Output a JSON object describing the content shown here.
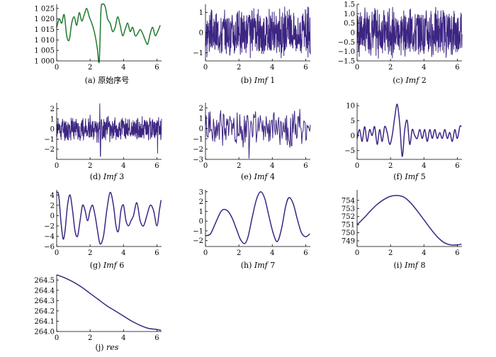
{
  "chart_data": [
    {
      "id": "a",
      "type": "line",
      "color": "#1f7a2e",
      "caption_prefix": "(a) ",
      "caption_name": "原始序号",
      "caption_name_italic": false,
      "caption_suffix": "",
      "xlim": [
        0,
        6.28
      ],
      "ylim": [
        1000,
        1027
      ],
      "xticks": [
        0,
        2,
        4,
        6
      ],
      "xtick_labels": [
        "0",
        "2",
        "4",
        "6"
      ],
      "yticks": [
        1000,
        1005,
        1010,
        1015,
        1020,
        1025
      ],
      "ytick_labels": [
        "1 000",
        "1 005",
        "1 010",
        "1 015",
        "1 020",
        "1 025"
      ],
      "x": [
        0.0,
        0.15,
        0.3,
        0.45,
        0.6,
        0.75,
        0.9,
        1.05,
        1.2,
        1.35,
        1.5,
        1.65,
        1.8,
        1.95,
        2.1,
        2.25,
        2.35,
        2.45,
        2.55,
        2.65,
        2.75,
        2.9,
        3.05,
        3.2,
        3.35,
        3.5,
        3.65,
        3.8,
        3.95,
        4.1,
        4.25,
        4.4,
        4.55,
        4.7,
        4.85,
        5.0,
        5.15,
        5.3,
        5.45,
        5.6,
        5.75,
        5.9,
        6.05,
        6.2
      ],
      "y": [
        1016,
        1020,
        1018,
        1022,
        1012,
        1010,
        1018,
        1021,
        1017,
        1023,
        1019,
        1022,
        1025,
        1021,
        1018,
        1014,
        1010,
        1005,
        1000,
        1024,
        1027,
        1026,
        1020,
        1018,
        1014,
        1016,
        1021,
        1017,
        1012,
        1015,
        1018,
        1014,
        1016,
        1012,
        1013,
        1015,
        1013,
        1010,
        1008,
        1013,
        1016,
        1012,
        1014,
        1017
      ]
    },
    {
      "id": "b",
      "type": "line",
      "noise": true,
      "color": "#3d2582",
      "caption_prefix": "(b) ",
      "caption_name": "Imf",
      "caption_name_italic": true,
      "caption_suffix": " 1",
      "xlim": [
        0,
        6.28
      ],
      "ylim": [
        -1.4,
        1.4
      ],
      "xticks": [
        0,
        2,
        4,
        6
      ],
      "xtick_labels": [
        "0",
        "2",
        "4",
        "6"
      ],
      "yticks": [
        -1,
        0,
        1
      ],
      "ytick_labels": [
        "−1",
        "0",
        "1"
      ],
      "amplitude": 1.3,
      "samples": 500,
      "seed": 3
    },
    {
      "id": "c",
      "type": "line",
      "noise": true,
      "color": "#3d2582",
      "caption_prefix": "(c) ",
      "caption_name": "Imf",
      "caption_name_italic": true,
      "caption_suffix": " 2",
      "xlim": [
        0,
        6.28
      ],
      "ylim": [
        -1.5,
        1.5
      ],
      "xticks": [
        0,
        2,
        4,
        6
      ],
      "xtick_labels": [
        "0",
        "2",
        "4",
        "6"
      ],
      "yticks": [
        -1.5,
        -1,
        -0.5,
        0,
        0.5,
        1,
        1.5
      ],
      "ytick_labels": [
        "−1.5",
        "−1.0",
        "−0.5",
        "0",
        "0.5",
        "1.0",
        "1.5"
      ],
      "amplitude": 1.45,
      "samples": 500,
      "seed": 7
    },
    {
      "id": "d",
      "type": "line",
      "noise": true,
      "color": "#3d2582",
      "caption_prefix": "(d) ",
      "caption_name": "Imf",
      "caption_name_italic": true,
      "caption_suffix": " 3",
      "xlim": [
        0,
        6.28
      ],
      "ylim": [
        -3,
        2.6
      ],
      "xticks": [
        0,
        2,
        4,
        6
      ],
      "xtick_labels": [
        "0",
        "2",
        "4",
        "6"
      ],
      "yticks": [
        -2,
        -1,
        0,
        1,
        2
      ],
      "ytick_labels": [
        "−2",
        "−1",
        "0",
        "1",
        "2"
      ],
      "amplitude": 1.4,
      "samples": 400,
      "seed": 11,
      "spikes": [
        {
          "x": 2.62,
          "y": -2.7
        },
        {
          "x": 2.58,
          "y": 2.5
        },
        {
          "x": 6.05,
          "y": -2.4
        }
      ]
    },
    {
      "id": "e",
      "type": "line",
      "noise": true,
      "color": "#3d2582",
      "caption_prefix": "(e) ",
      "caption_name": "Imf",
      "caption_name_italic": true,
      "caption_suffix": " 4",
      "xlim": [
        0,
        6.28
      ],
      "ylim": [
        -3,
        2.5
      ],
      "xticks": [
        0,
        2,
        4,
        6
      ],
      "xtick_labels": [
        "0",
        "2",
        "4",
        "6"
      ],
      "yticks": [
        -3,
        -2,
        -1,
        0,
        1,
        2
      ],
      "ytick_labels": [
        "−3",
        "−2",
        "−1",
        "0",
        "1",
        "2"
      ],
      "amplitude": 2.1,
      "samples": 160,
      "seed": 19,
      "spikes": [
        {
          "x": 2.6,
          "y": -2.9
        }
      ]
    },
    {
      "id": "f",
      "type": "line",
      "color": "#3d2582",
      "caption_prefix": "(f) ",
      "caption_name": "Imf",
      "caption_name_italic": true,
      "caption_suffix": " 5",
      "xlim": [
        0,
        6.28
      ],
      "ylim": [
        -8,
        11
      ],
      "xticks": [
        0,
        2,
        4,
        6
      ],
      "xtick_labels": [
        "0",
        "2",
        "4",
        "6"
      ],
      "yticks": [
        -5,
        0,
        5,
        10
      ],
      "ytick_labels": [
        "−5",
        "0",
        "5",
        "10"
      ],
      "x": [
        0.0,
        0.15,
        0.3,
        0.45,
        0.6,
        0.75,
        0.9,
        1.05,
        1.2,
        1.35,
        1.5,
        1.65,
        1.8,
        1.95,
        2.1,
        2.25,
        2.4,
        2.55,
        2.7,
        2.85,
        3.0,
        3.15,
        3.3,
        3.45,
        3.6,
        3.75,
        3.9,
        4.05,
        4.2,
        4.35,
        4.5,
        4.65,
        4.8,
        4.95,
        5.1,
        5.25,
        5.4,
        5.55,
        5.7,
        5.85,
        6.0,
        6.15,
        6.25
      ],
      "y": [
        -1,
        2,
        -2,
        3,
        -2,
        2,
        0,
        3,
        -3,
        2,
        -2,
        3,
        1,
        -3,
        0,
        6,
        10.5,
        4,
        -7,
        2,
        5,
        -3,
        2,
        0,
        -1,
        2,
        -1,
        2,
        -2,
        2,
        -1,
        2,
        -1,
        1,
        -1,
        2,
        -1,
        1,
        -2,
        2,
        -1,
        3,
        3
      ]
    },
    {
      "id": "g",
      "type": "line",
      "color": "#3d2582",
      "caption_prefix": "(g) ",
      "caption_name": "Imf",
      "caption_name_italic": true,
      "caption_suffix": " 6",
      "xlim": [
        0,
        6.28
      ],
      "ylim": [
        -6,
        5
      ],
      "xticks": [
        0,
        2,
        4,
        6
      ],
      "xtick_labels": [
        "0",
        "2",
        "4",
        "6"
      ],
      "yticks": [
        -6,
        -4,
        -2,
        0,
        2,
        4
      ],
      "ytick_labels": [
        "−6",
        "−4",
        "−2",
        "0",
        "2",
        "4"
      ],
      "x": [
        0.0,
        0.12,
        0.25,
        0.38,
        0.5,
        0.65,
        0.8,
        0.95,
        1.1,
        1.25,
        1.4,
        1.55,
        1.7,
        1.85,
        2.0,
        2.15,
        2.3,
        2.45,
        2.6,
        2.8,
        3.0,
        3.2,
        3.4,
        3.55,
        3.7,
        3.85,
        4.0,
        4.15,
        4.3,
        4.45,
        4.6,
        4.8,
        5.0,
        5.2,
        5.4,
        5.6,
        5.8,
        6.0,
        6.15,
        6.25
      ],
      "y": [
        4.5,
        4,
        -1,
        -4.5,
        -3,
        2,
        4,
        1,
        -3,
        -4,
        -1,
        2,
        1,
        -1,
        1,
        2,
        0,
        -3,
        -5.5,
        -4,
        1,
        4.5,
        2,
        -2,
        -3,
        1,
        2,
        -1,
        -2,
        -1,
        0,
        2.5,
        -1,
        -2,
        0,
        2,
        1,
        -2,
        1,
        3
      ]
    },
    {
      "id": "h",
      "type": "line",
      "color": "#3d2582",
      "caption_prefix": "(h) ",
      "caption_name": "Imf",
      "caption_name_italic": true,
      "caption_suffix": " 7",
      "xlim": [
        0,
        6.28
      ],
      "ylim": [
        -2.6,
        3.2
      ],
      "xticks": [
        0,
        2,
        4,
        6
      ],
      "xtick_labels": [
        "0",
        "2",
        "4",
        "6"
      ],
      "yticks": [
        -2,
        -1,
        0,
        1,
        2,
        3
      ],
      "ytick_labels": [
        "−2",
        "−1",
        "0",
        "1",
        "2",
        "3"
      ],
      "x": [
        0.0,
        0.3,
        0.6,
        0.9,
        1.1,
        1.35,
        1.6,
        1.85,
        2.1,
        2.35,
        2.55,
        2.8,
        3.05,
        3.3,
        3.55,
        3.8,
        4.05,
        4.3,
        4.55,
        4.8,
        5.0,
        5.25,
        5.5,
        5.75,
        6.0,
        6.25
      ],
      "y": [
        -1.5,
        -1.3,
        -0.2,
        0.9,
        1.2,
        1.0,
        0.3,
        -0.8,
        -1.9,
        -2.3,
        -1.6,
        0.4,
        2.2,
        3.0,
        2.3,
        0.5,
        -1.2,
        -2.1,
        -0.8,
        1.5,
        2.4,
        1.8,
        0.2,
        -1.2,
        -1.6,
        -1.3
      ]
    },
    {
      "id": "i",
      "type": "line",
      "color": "#3d2582",
      "caption_prefix": "(i) ",
      "caption_name": "Imf",
      "caption_name_italic": true,
      "caption_suffix": " 8",
      "xlim": [
        0,
        6.28
      ],
      "ylim": [
        748.3,
        755.3
      ],
      "xticks": [
        0,
        2,
        4,
        6
      ],
      "xtick_labels": [
        "0",
        "2",
        "4",
        "6"
      ],
      "yticks": [
        749,
        750,
        751,
        752,
        753,
        754
      ],
      "ytick_labels": [
        "749",
        "750",
        "751",
        "752",
        "753",
        "754"
      ],
      "x": [
        0.0,
        0.4,
        0.8,
        1.2,
        1.6,
        2.0,
        2.4,
        2.8,
        3.2,
        3.6,
        4.0,
        4.4,
        4.8,
        5.2,
        5.6,
        6.0,
        6.25
      ],
      "y": [
        751.0,
        751.8,
        752.7,
        753.5,
        754.1,
        754.5,
        754.6,
        754.4,
        753.7,
        752.7,
        751.6,
        750.5,
        749.5,
        748.8,
        748.5,
        748.5,
        748.6
      ]
    },
    {
      "id": "j",
      "type": "line",
      "color": "#3d2582",
      "caption_prefix": "(j) ",
      "caption_name": "res",
      "caption_name_italic": true,
      "caption_suffix": "",
      "xlim": [
        0,
        6.28
      ],
      "ylim": [
        264.0,
        264.55
      ],
      "xticks": [
        0,
        2,
        4,
        6
      ],
      "xtick_labels": [
        "0",
        "2",
        "4",
        "6"
      ],
      "yticks": [
        264.0,
        264.1,
        264.2,
        264.3,
        264.4,
        264.5
      ],
      "ytick_labels": [
        "264.0",
        "264.1",
        "264.2",
        "264.3",
        "264.4",
        "264.5"
      ],
      "x": [
        0.0,
        0.5,
        1.0,
        1.5,
        2.0,
        2.5,
        3.0,
        3.5,
        4.0,
        4.5,
        5.0,
        5.5,
        6.0,
        6.25
      ],
      "y": [
        264.55,
        264.52,
        264.48,
        264.43,
        264.37,
        264.31,
        264.25,
        264.2,
        264.15,
        264.1,
        264.06,
        264.03,
        264.02,
        264.01
      ]
    }
  ]
}
